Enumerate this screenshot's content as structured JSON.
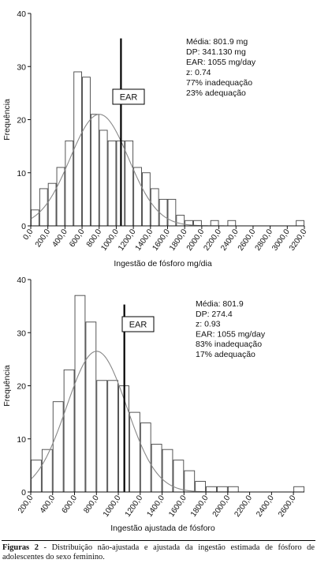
{
  "chart_data": [
    {
      "type": "bar",
      "ylabel": "Frequência",
      "xlabel": "Ingestão de fósforo mg/dia",
      "ylim": [
        0,
        40
      ],
      "y_ticks": [
        0,
        10,
        20,
        30,
        40
      ],
      "x_tick_labels": [
        "0,0",
        "200,0",
        "400,0",
        "600,0",
        "800,0",
        "1000,0",
        "1200,0",
        "1400,0",
        "1600,0",
        "1800,0",
        "2000,0",
        "2200,0",
        "2400,0",
        "2600,0",
        "2800,0",
        "3000,0",
        "3200,0"
      ],
      "x_tick_values": [
        0,
        200,
        400,
        600,
        800,
        1000,
        1200,
        1400,
        1600,
        1800,
        2000,
        2200,
        2400,
        2600,
        2800,
        3000,
        3200
      ],
      "xlim": [
        0,
        3200
      ],
      "bin_width": 100,
      "bins_start": [
        0,
        100,
        200,
        300,
        400,
        500,
        600,
        700,
        800,
        900,
        1000,
        1100,
        1200,
        1300,
        1400,
        1500,
        1600,
        1700,
        1800,
        1900,
        2000,
        2100,
        2200,
        2300,
        2400,
        2500,
        2600,
        2700,
        2800,
        2900,
        3000,
        3100
      ],
      "counts": [
        3,
        7,
        8,
        11,
        16,
        29,
        28,
        21,
        18,
        16,
        16,
        16,
        11,
        10,
        7,
        5,
        5,
        2,
        1,
        1,
        0,
        1,
        0,
        1,
        0,
        0,
        0,
        0,
        0,
        0,
        0,
        1
      ],
      "normal_curve": {
        "mean": 801.9,
        "sd": 341.13,
        "peak": 21
      },
      "ear": {
        "label": "EAR",
        "value": 1055
      },
      "stats": [
        "Média: 801.9 mg",
        "DP: 341.130 mg",
        "EAR: 1055 mg/day",
        "z: 0.74",
        "77% inadequação",
        "23% adequação"
      ]
    },
    {
      "type": "bar",
      "ylabel": "Frequência",
      "xlabel": "Ingestão ajustada de fósforo",
      "ylim": [
        0,
        40
      ],
      "y_ticks": [
        0,
        10,
        20,
        30,
        40
      ],
      "x_tick_labels": [
        "200,0",
        "400,0",
        "600,0",
        "800,0",
        "1000,0",
        "1200,0",
        "1400,0",
        "1600,0",
        "1800,0",
        "2000,0",
        "2200,0",
        "2400,0",
        "2600,0"
      ],
      "x_tick_values": [
        200,
        400,
        600,
        800,
        1000,
        1200,
        1400,
        1600,
        1800,
        2000,
        2200,
        2400,
        2600
      ],
      "xlim": [
        200,
        2700
      ],
      "bin_width": 100,
      "bins_start": [
        200,
        300,
        400,
        500,
        600,
        700,
        800,
        900,
        1000,
        1100,
        1200,
        1300,
        1400,
        1500,
        1600,
        1700,
        1800,
        1900,
        2000,
        2100,
        2200,
        2300,
        2400,
        2500,
        2600
      ],
      "counts": [
        6,
        8,
        17,
        23,
        37,
        32,
        21,
        21,
        20,
        15,
        13,
        9,
        8,
        6,
        4,
        2,
        1,
        1,
        1,
        0,
        0,
        0,
        0,
        0,
        1
      ],
      "normal_curve": {
        "mean": 801.9,
        "sd": 274.4,
        "peak": 26.5
      },
      "ear": {
        "label": "EAR",
        "value": 1055
      },
      "stats": [
        "Média: 801.9",
        "DP: 274.4",
        "z: 0.93",
        "EAR: 1055 mg/day",
        "83% inadequação",
        "17% adequação"
      ]
    }
  ],
  "caption": {
    "label": "Figuras 2",
    "text": " - Distribuição não-ajustada e ajustada da ingestão estimada de fósforo de adolescentes do sexo feminino."
  },
  "colors": {
    "bar_stroke": "#444444",
    "curve": "#888888",
    "axis": "#111111"
  }
}
